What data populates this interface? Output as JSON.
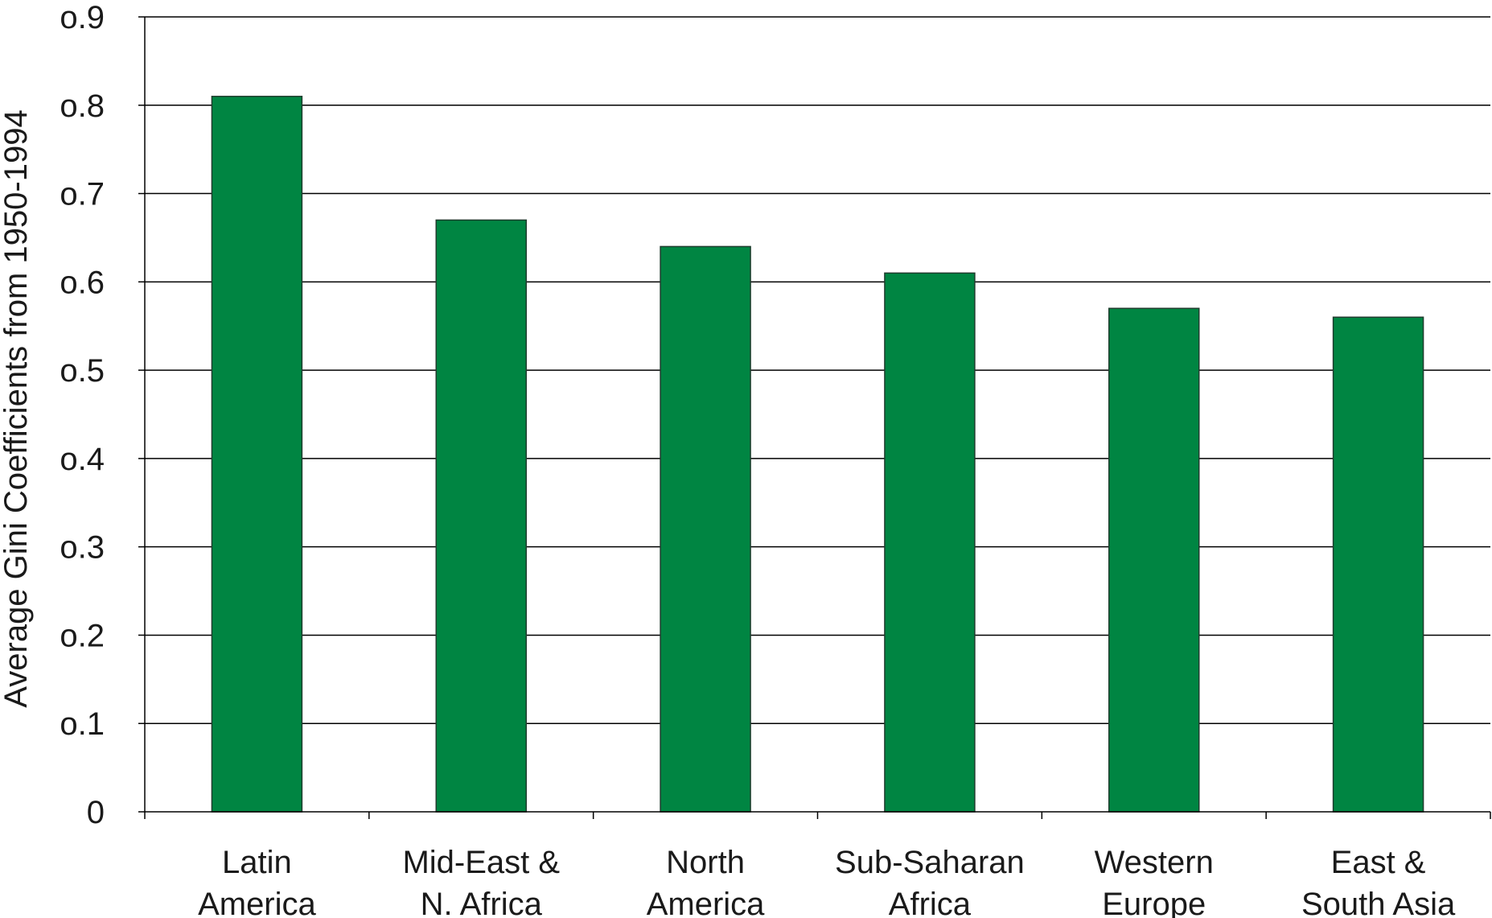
{
  "chart_data": {
    "type": "bar",
    "title": "",
    "xlabel": "",
    "ylabel": "Average Gini Coefficients from 1950-1994",
    "categories": [
      [
        "Latin",
        "America"
      ],
      [
        "Mid-East &",
        "N. Africa"
      ],
      [
        "North",
        "America"
      ],
      [
        "Sub-Saharan",
        "Africa"
      ],
      [
        "Western",
        "Europe"
      ],
      [
        "East &",
        "South Asia"
      ]
    ],
    "values": [
      0.81,
      0.67,
      0.64,
      0.61,
      0.57,
      0.56
    ],
    "ylim": [
      0,
      0.9
    ],
    "yticks": [
      "0",
      "o.1",
      "o.2",
      "o.3",
      "o.4",
      "o.5",
      "o.6",
      "o.7",
      "o.8",
      "o.9"
    ],
    "grid": true,
    "legend": "none",
    "colors": {
      "bar_fill": "#008542",
      "bar_stroke": "#1f3d2e",
      "grid": "#000000",
      "axis": "#000000"
    }
  }
}
